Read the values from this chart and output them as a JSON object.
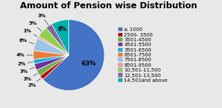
{
  "title": "Amount of Pension wise Distribution",
  "labels": [
    "≤ 1000",
    "2500- 3500",
    "3501-4500",
    "4501-5500",
    "3501-6500",
    "6501-7500",
    "7501-8500",
    "8501-9500",
    "10,501-11,500",
    "12,501-13,500",
    "14,501and above"
  ],
  "values": [
    63,
    2,
    3,
    3,
    2,
    4,
    6,
    1,
    5,
    3,
    8
  ],
  "colors": [
    "#4472C4",
    "#C00000",
    "#70AD47",
    "#7030A0",
    "#00B0F0",
    "#ED7D31",
    "#9DC3E6",
    "#FF9999",
    "#92D050",
    "#8064A2",
    "#00B0B0"
  ],
  "pct_labels": [
    "63%",
    "2%",
    "3%",
    "3%",
    "2%",
    "4%",
    "6%",
    "1%",
    "5%",
    "3%",
    "8%"
  ],
  "bg_color": "#E8E8E8",
  "title_fontsize": 9,
  "legend_fontsize": 5.2
}
